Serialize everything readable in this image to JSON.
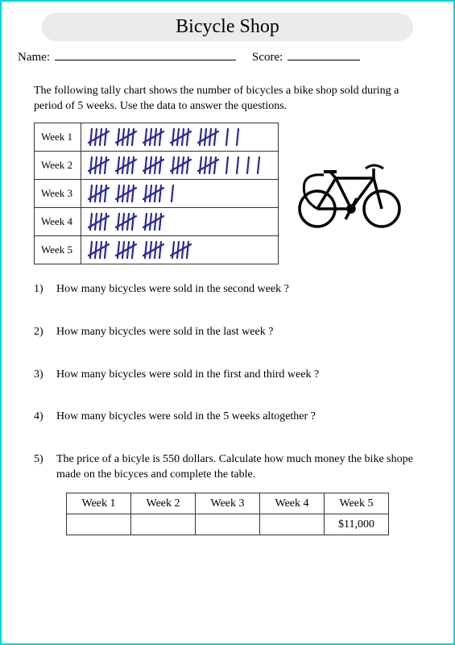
{
  "title": "Bicycle Shop",
  "name_label": "Name:",
  "score_label": "Score:",
  "instructions": "The following tally chart shows the number of bicycles a bike shop sold during a period of 5 weeks. Use the data to answer the questions.",
  "tally_color": "#2a2a9a",
  "tally_rows": [
    {
      "label": "Week 1",
      "fives": 5,
      "ones": 2
    },
    {
      "label": "Week 2",
      "fives": 5,
      "ones": 4
    },
    {
      "label": "Week 3",
      "fives": 3,
      "ones": 1
    },
    {
      "label": "Week 4",
      "fives": 3,
      "ones": 0
    },
    {
      "label": "Week 5",
      "fives": 4,
      "ones": 0
    }
  ],
  "questions": [
    {
      "num": "1)",
      "text": "How many bicycles were sold in the second week ?"
    },
    {
      "num": "2)",
      "text": "How many bicycles were sold in the last week ?"
    },
    {
      "num": "3)",
      "text": "How many bicycles were sold in the first and third week ?"
    },
    {
      "num": "4)",
      "text": "How many bicycles were sold in the 5 weeks altogether ?"
    },
    {
      "num": "5)",
      "text": "The price of a bicyle is 550 dollars. Calculate how much money the bike shope made on the bicyces and complete the table."
    }
  ],
  "price_table": {
    "headers": [
      "Week 1",
      "Week 2",
      "Week 3",
      "Week 4",
      "Week 5"
    ],
    "values": [
      "",
      "",
      "",
      "",
      "$11,000"
    ]
  }
}
